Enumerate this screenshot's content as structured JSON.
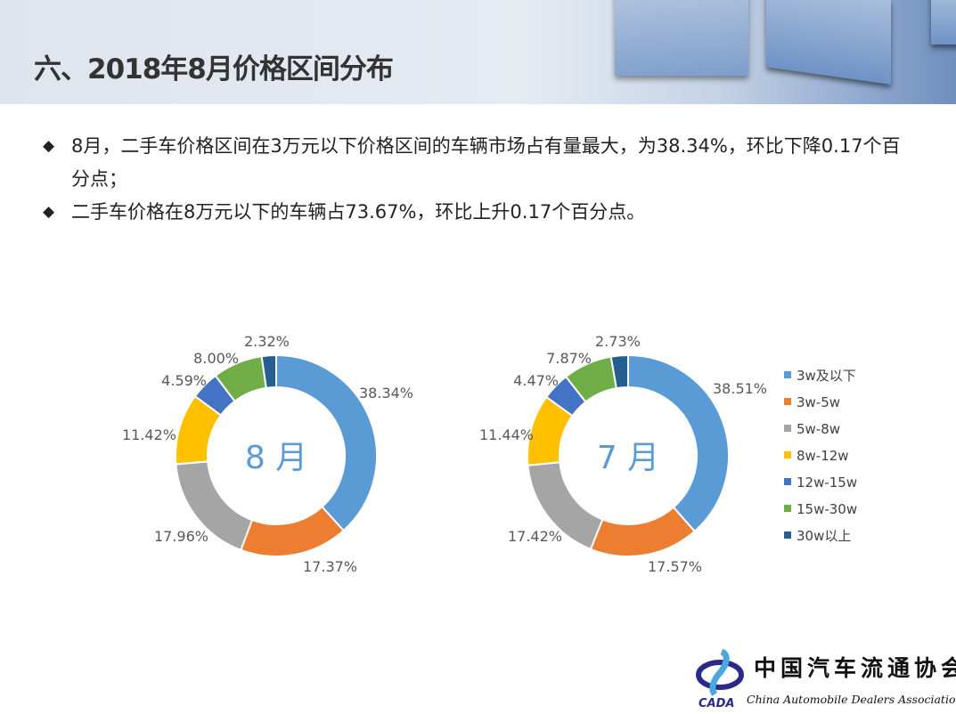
{
  "header": {
    "title": "六、2018年8月价格区间分布"
  },
  "bullets": [
    "8月，二手车价格区间在3万元以下价格区间的车辆市场占有量最大，为38.34%，环比下降0.17个百分点；",
    "二手车价格在8万元以下的车辆占73.67%，环比上升0.17个百分点。"
  ],
  "bullet_icon": "diamond-icon",
  "chart_data": [
    {
      "type": "pie",
      "variant": "donut",
      "center_label": "8 月",
      "categories": [
        "3w及以下",
        "3w-5w",
        "5w-8w",
        "8w-12w",
        "12w-15w",
        "15w-30w",
        "30w以上"
      ],
      "values": [
        38.34,
        17.37,
        17.96,
        11.42,
        4.59,
        8.0,
        2.32
      ],
      "labels": [
        "38.34%",
        "17.37%",
        "17.96%",
        "11.42%",
        "4.59%",
        "8.00%",
        "2.32%"
      ]
    },
    {
      "type": "pie",
      "variant": "donut",
      "center_label": "7 月",
      "categories": [
        "3w及以下",
        "3w-5w",
        "5w-8w",
        "8w-12w",
        "12w-15w",
        "15w-30w",
        "30w以上"
      ],
      "values": [
        38.51,
        17.57,
        17.42,
        11.44,
        4.47,
        7.87,
        2.73
      ],
      "labels": [
        "38.51%",
        "17.57%",
        "17.42%",
        "11.44%",
        "4.47%",
        "7.87%",
        "2.73%"
      ]
    }
  ],
  "legend": {
    "placement": "right",
    "items": [
      "3w及以下",
      "3w-5w",
      "5w-8w",
      "8w-12w",
      "12w-15w",
      "15w-30w",
      "30w以上"
    ]
  },
  "colors": [
    "#5B9BD5",
    "#ED7D31",
    "#A5A5A5",
    "#FFC000",
    "#4472C4",
    "#70AD47",
    "#255E91"
  ],
  "logo": {
    "cn": "中国汽车流通协会",
    "en": "China Automobile Dealers Association",
    "mark": "CADA"
  }
}
